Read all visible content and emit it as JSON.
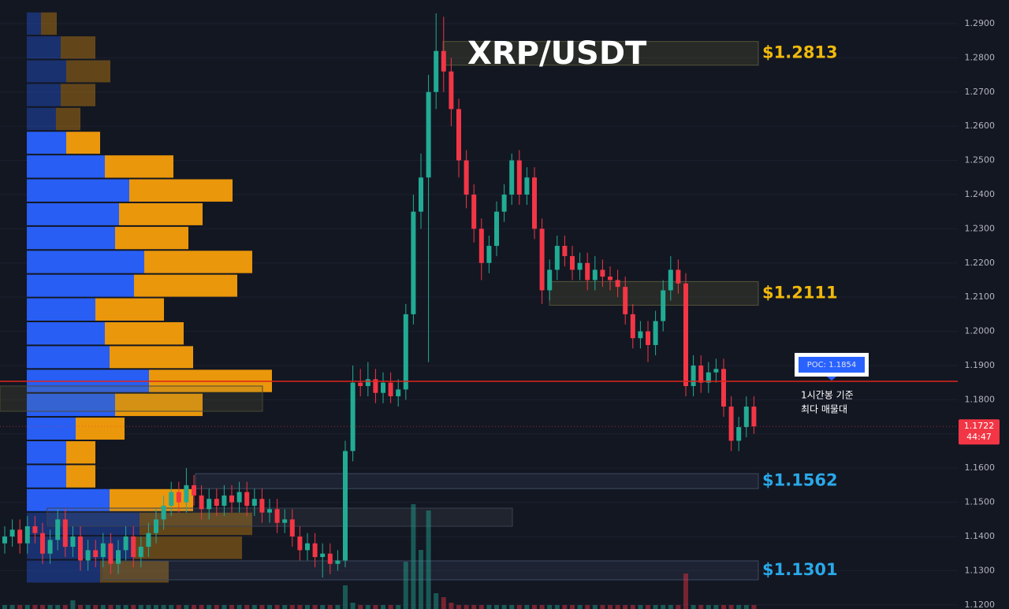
{
  "chart_data": {
    "type": "candlestick",
    "title": "XRP/USDT",
    "ylim": [
      1.1188,
      1.2969
    ],
    "yticks": [
      {
        "value": 1.12,
        "label": "1.1200"
      },
      {
        "value": 1.13,
        "label": "1.1300"
      },
      {
        "value": 1.14,
        "label": "1.1400"
      },
      {
        "value": 1.15,
        "label": "1.1500"
      },
      {
        "value": 1.16,
        "label": "1.1600"
      },
      {
        "value": 1.17,
        "label": "1.1700"
      },
      {
        "value": 1.18,
        "label": "1.1800"
      },
      {
        "value": 1.19,
        "label": "1.1900"
      },
      {
        "value": 1.2,
        "label": "1.2000"
      },
      {
        "value": 1.21,
        "label": "1.2100"
      },
      {
        "value": 1.22,
        "label": "1.2200"
      },
      {
        "value": 1.23,
        "label": "1.2300"
      },
      {
        "value": 1.24,
        "label": "1.2400"
      },
      {
        "value": 1.25,
        "label": "1.2500"
      },
      {
        "value": 1.26,
        "label": "1.2600"
      },
      {
        "value": 1.27,
        "label": "1.2700"
      },
      {
        "value": 1.28,
        "label": "1.2800"
      },
      {
        "value": 1.29,
        "label": "1.2900"
      }
    ],
    "grid": true,
    "up_color": "#22ab94",
    "down_color": "#f23645",
    "open": [
      1.138,
      1.14,
      1.142,
      1.138,
      1.143,
      1.141,
      1.135,
      1.139,
      1.145,
      1.137,
      1.14,
      1.133,
      1.136,
      1.134,
      1.138,
      1.132,
      1.136,
      1.14,
      1.134,
      1.137,
      1.141,
      1.145,
      1.149,
      1.153,
      1.15,
      1.155,
      1.152,
      1.148,
      1.151,
      1.149,
      1.152,
      1.15,
      1.153,
      1.149,
      1.151,
      1.147,
      1.148,
      1.144,
      1.145,
      1.14,
      1.136,
      1.138,
      1.134,
      1.135,
      1.132,
      1.133,
      1.165,
      1.185,
      1.184,
      1.186,
      1.182,
      1.185,
      1.181,
      1.183,
      1.205,
      1.235,
      1.245,
      1.27,
      1.282,
      1.276,
      1.265,
      1.25,
      1.24,
      1.23,
      1.22,
      1.225,
      1.235,
      1.24,
      1.25,
      1.24,
      1.245,
      1.23,
      1.212,
      1.218,
      1.225,
      1.222,
      1.218,
      1.22,
      1.215,
      1.218,
      1.216,
      1.215,
      1.213,
      1.205,
      1.198,
      1.2,
      1.196,
      1.203,
      1.212,
      1.218,
      1.214,
      1.184,
      1.19,
      1.185,
      1.188,
      1.189,
      1.178,
      1.168,
      1.172,
      1.178
    ],
    "high": [
      1.143,
      1.145,
      1.145,
      1.146,
      1.146,
      1.144,
      1.142,
      1.148,
      1.148,
      1.143,
      1.143,
      1.139,
      1.139,
      1.141,
      1.141,
      1.139,
      1.143,
      1.143,
      1.14,
      1.144,
      1.148,
      1.152,
      1.156,
      1.156,
      1.16,
      1.158,
      1.155,
      1.154,
      1.154,
      1.155,
      1.155,
      1.156,
      1.156,
      1.154,
      1.154,
      1.151,
      1.151,
      1.148,
      1.148,
      1.143,
      1.141,
      1.141,
      1.138,
      1.138,
      1.136,
      1.168,
      1.19,
      1.189,
      1.191,
      1.189,
      1.188,
      1.188,
      1.186,
      1.208,
      1.24,
      1.252,
      1.275,
      1.293,
      1.292,
      1.28,
      1.268,
      1.253,
      1.243,
      1.233,
      1.228,
      1.238,
      1.243,
      1.252,
      1.253,
      1.248,
      1.248,
      1.233,
      1.221,
      1.228,
      1.228,
      1.225,
      1.223,
      1.223,
      1.222,
      1.221,
      1.219,
      1.218,
      1.216,
      1.208,
      1.203,
      1.203,
      1.206,
      1.215,
      1.222,
      1.221,
      1.217,
      1.193,
      1.193,
      1.191,
      1.192,
      1.192,
      1.181,
      1.175,
      1.181,
      1.181
    ],
    "low": [
      1.135,
      1.137,
      1.135,
      1.135,
      1.138,
      1.132,
      1.132,
      1.136,
      1.134,
      1.134,
      1.13,
      1.13,
      1.131,
      1.131,
      1.129,
      1.129,
      1.133,
      1.131,
      1.131,
      1.134,
      1.138,
      1.142,
      1.146,
      1.147,
      1.147,
      1.149,
      1.145,
      1.145,
      1.146,
      1.146,
      1.147,
      1.147,
      1.146,
      1.146,
      1.144,
      1.144,
      1.141,
      1.141,
      1.137,
      1.133,
      1.133,
      1.131,
      1.128,
      1.129,
      1.13,
      1.131,
      1.162,
      1.181,
      1.181,
      1.179,
      1.179,
      1.179,
      1.178,
      1.18,
      1.202,
      1.23,
      1.191,
      1.265,
      1.27,
      1.26,
      1.245,
      1.236,
      1.226,
      1.215,
      1.217,
      1.222,
      1.232,
      1.237,
      1.237,
      1.237,
      1.227,
      1.208,
      1.209,
      1.215,
      1.219,
      1.215,
      1.215,
      1.212,
      1.212,
      1.213,
      1.212,
      1.21,
      1.202,
      1.195,
      1.195,
      1.191,
      1.193,
      1.2,
      1.209,
      1.211,
      1.181,
      1.181,
      1.182,
      1.182,
      1.185,
      1.175,
      1.165,
      1.165,
      1.169,
      1.17
    ],
    "close": [
      1.14,
      1.142,
      1.138,
      1.143,
      1.141,
      1.135,
      1.139,
      1.145,
      1.137,
      1.14,
      1.133,
      1.136,
      1.134,
      1.138,
      1.132,
      1.136,
      1.14,
      1.134,
      1.137,
      1.141,
      1.145,
      1.149,
      1.153,
      1.15,
      1.155,
      1.152,
      1.148,
      1.151,
      1.149,
      1.152,
      1.15,
      1.153,
      1.149,
      1.151,
      1.147,
      1.148,
      1.144,
      1.145,
      1.14,
      1.136,
      1.138,
      1.134,
      1.135,
      1.132,
      1.133,
      1.165,
      1.185,
      1.184,
      1.186,
      1.182,
      1.185,
      1.181,
      1.183,
      1.205,
      1.235,
      1.245,
      1.27,
      1.282,
      1.276,
      1.265,
      1.25,
      1.24,
      1.23,
      1.22,
      1.225,
      1.235,
      1.24,
      1.25,
      1.24,
      1.245,
      1.23,
      1.212,
      1.218,
      1.225,
      1.222,
      1.218,
      1.22,
      1.215,
      1.218,
      1.216,
      1.215,
      1.213,
      1.205,
      1.198,
      1.2,
      1.196,
      1.203,
      1.212,
      1.218,
      1.214,
      1.184,
      1.19,
      1.185,
      1.188,
      1.189,
      1.178,
      1.168,
      1.172,
      1.178,
      1.1722
    ],
    "volume": [
      5,
      5,
      5,
      5,
      5,
      5,
      5,
      5,
      5,
      11,
      5,
      5,
      5,
      5,
      5,
      5,
      5,
      5,
      5,
      5,
      5,
      5,
      5,
      5,
      5,
      5,
      5,
      5,
      5,
      5,
      5,
      5,
      5,
      5,
      5,
      5,
      5,
      5,
      5,
      5,
      5,
      5,
      5,
      5,
      5,
      30,
      8,
      5,
      5,
      5,
      5,
      5,
      5,
      60,
      133,
      75,
      125,
      20,
      15,
      8,
      5,
      5,
      5,
      5,
      5,
      5,
      5,
      5,
      5,
      5,
      5,
      5,
      5,
      5,
      5,
      5,
      5,
      5,
      5,
      5,
      5,
      5,
      5,
      5,
      5,
      5,
      5,
      5,
      5,
      5,
      45,
      5,
      5,
      5,
      5,
      5,
      5,
      5,
      5,
      5
    ],
    "volume_profile": {
      "bins": [
        1.2935,
        1.2865,
        1.2795,
        1.2726,
        1.2656,
        1.2586,
        1.2517,
        1.2447,
        1.2377,
        1.2308,
        1.2238,
        1.2168,
        1.2099,
        1.2029,
        1.1959,
        1.189,
        1.182,
        1.175,
        1.1681,
        1.1611,
        1.1541,
        1.1472,
        1.1402,
        1.1332,
        1.1263
      ],
      "buy": [
        18,
        43,
        50,
        43,
        37,
        50,
        99,
        130,
        117,
        112,
        149,
        136,
        87,
        99,
        105,
        155,
        112,
        62,
        50,
        50,
        105,
        143,
        136,
        93
      ],
      "sell": [
        20,
        44,
        56,
        44,
        31,
        43,
        87,
        131,
        106,
        93,
        137,
        131,
        87,
        100,
        106,
        156,
        111,
        62,
        37,
        37,
        106,
        143,
        137,
        87
      ],
      "buy_color": "#2962ff",
      "sell_color": "#f59e0b",
      "value_area": [
        1.1472,
        1.2586
      ]
    },
    "levels": [
      {
        "value": 1.2813,
        "label": "$1.2813",
        "color": "#f0b90b"
      },
      {
        "value": 1.2111,
        "label": "$1.2111",
        "color": "#f0b90b"
      },
      {
        "value": 1.1562,
        "label": "$1.1562",
        "color": "#2aa8e8"
      },
      {
        "value": 1.1301,
        "label": "$1.1301",
        "color": "#2aa8e8"
      }
    ],
    "poc": {
      "value": 1.1854,
      "label": "POC: 1.1854",
      "color": "#e0241b"
    },
    "note": [
      "1시간봉 기준",
      "최다 매물대"
    ],
    "last_price": {
      "value": 1.1722,
      "label": "1.1722"
    },
    "countdown": "44:47"
  }
}
